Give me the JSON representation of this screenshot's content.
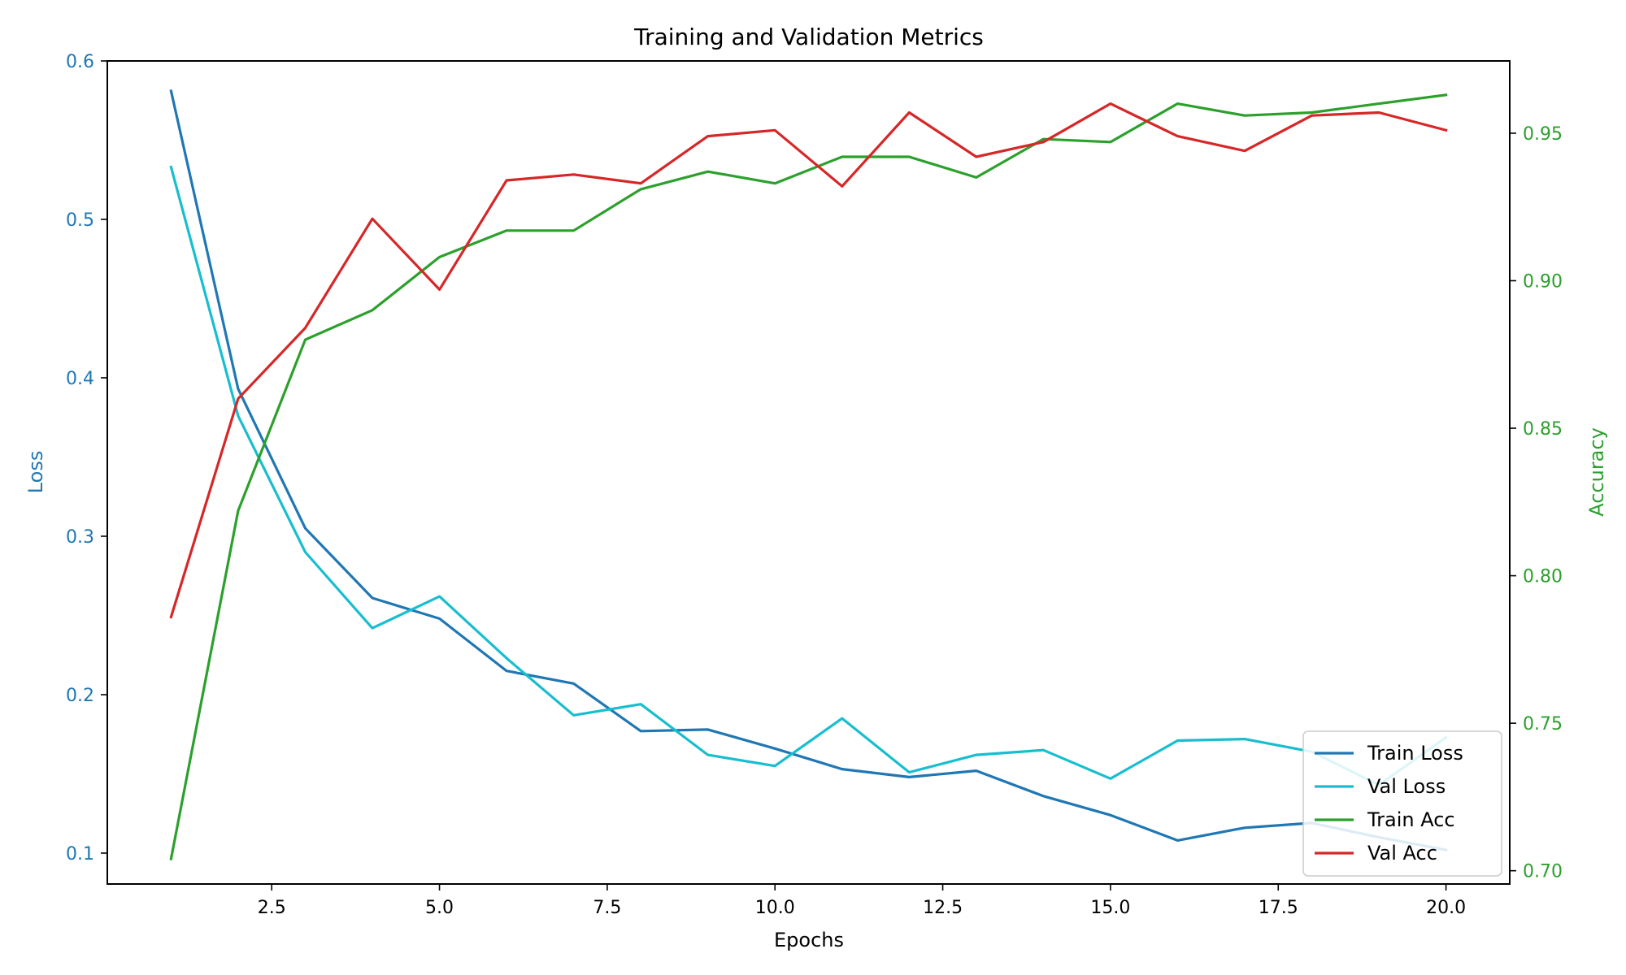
{
  "chart_data": {
    "type": "line",
    "title": "Training and Validation Metrics",
    "xlabel": "Epochs",
    "ylabel_left": "Loss",
    "ylabel_right": "Accuracy",
    "xlim": [
      0.05,
      20.95
    ],
    "ylim_left": [
      0.0805,
      0.6
    ],
    "ylim_right": [
      0.6955,
      0.9745
    ],
    "x_ticks": [
      2.5,
      5.0,
      7.5,
      10.0,
      12.5,
      15.0,
      17.5,
      20.0
    ],
    "x_tick_labels": [
      "2.5",
      "5.0",
      "7.5",
      "10.0",
      "12.5",
      "15.0",
      "17.5",
      "20.0"
    ],
    "y_left_ticks": [
      0.1,
      0.2,
      0.3,
      0.4,
      0.5,
      0.6
    ],
    "y_left_tick_labels": [
      "0.1",
      "0.2",
      "0.3",
      "0.4",
      "0.5",
      "0.6"
    ],
    "y_right_ticks": [
      0.7,
      0.75,
      0.8,
      0.85,
      0.9,
      0.95
    ],
    "y_right_tick_labels": [
      "0.70",
      "0.75",
      "0.80",
      "0.85",
      "0.90",
      "0.95"
    ],
    "left_axis_color": "#1f77b4",
    "right_axis_color": "#2ca02c",
    "grid": false,
    "legend_position": "bottom-right",
    "x": [
      1,
      2,
      3,
      4,
      5,
      6,
      7,
      8,
      9,
      10,
      11,
      12,
      13,
      14,
      15,
      16,
      17,
      18,
      19,
      20
    ],
    "series": [
      {
        "name": "Train Loss",
        "axis": "left",
        "color": "#1f77b4",
        "values": [
          0.581,
          0.393,
          0.305,
          0.261,
          0.248,
          0.215,
          0.207,
          0.177,
          0.178,
          0.166,
          0.153,
          0.148,
          0.152,
          0.136,
          0.124,
          0.108,
          0.116,
          0.119,
          0.11,
          0.102
        ]
      },
      {
        "name": "Val Loss",
        "axis": "left",
        "color": "#17becf",
        "values": [
          0.533,
          0.376,
          0.29,
          0.242,
          0.262,
          0.223,
          0.187,
          0.194,
          0.162,
          0.155,
          0.185,
          0.151,
          0.162,
          0.165,
          0.147,
          0.171,
          0.172,
          0.164,
          0.143,
          0.173
        ]
      },
      {
        "name": "Train Acc",
        "axis": "right",
        "color": "#2ca02c",
        "values": [
          0.704,
          0.822,
          0.88,
          0.89,
          0.908,
          0.917,
          0.917,
          0.931,
          0.937,
          0.933,
          0.942,
          0.942,
          0.935,
          0.948,
          0.947,
          0.96,
          0.956,
          0.957,
          0.96,
          0.963
        ]
      },
      {
        "name": "Val Acc",
        "axis": "right",
        "color": "#d62728",
        "values": [
          0.786,
          0.86,
          0.884,
          0.921,
          0.897,
          0.934,
          0.936,
          0.933,
          0.949,
          0.951,
          0.932,
          0.957,
          0.942,
          0.947,
          0.96,
          0.949,
          0.944,
          0.956,
          0.957,
          0.951
        ]
      }
    ]
  }
}
